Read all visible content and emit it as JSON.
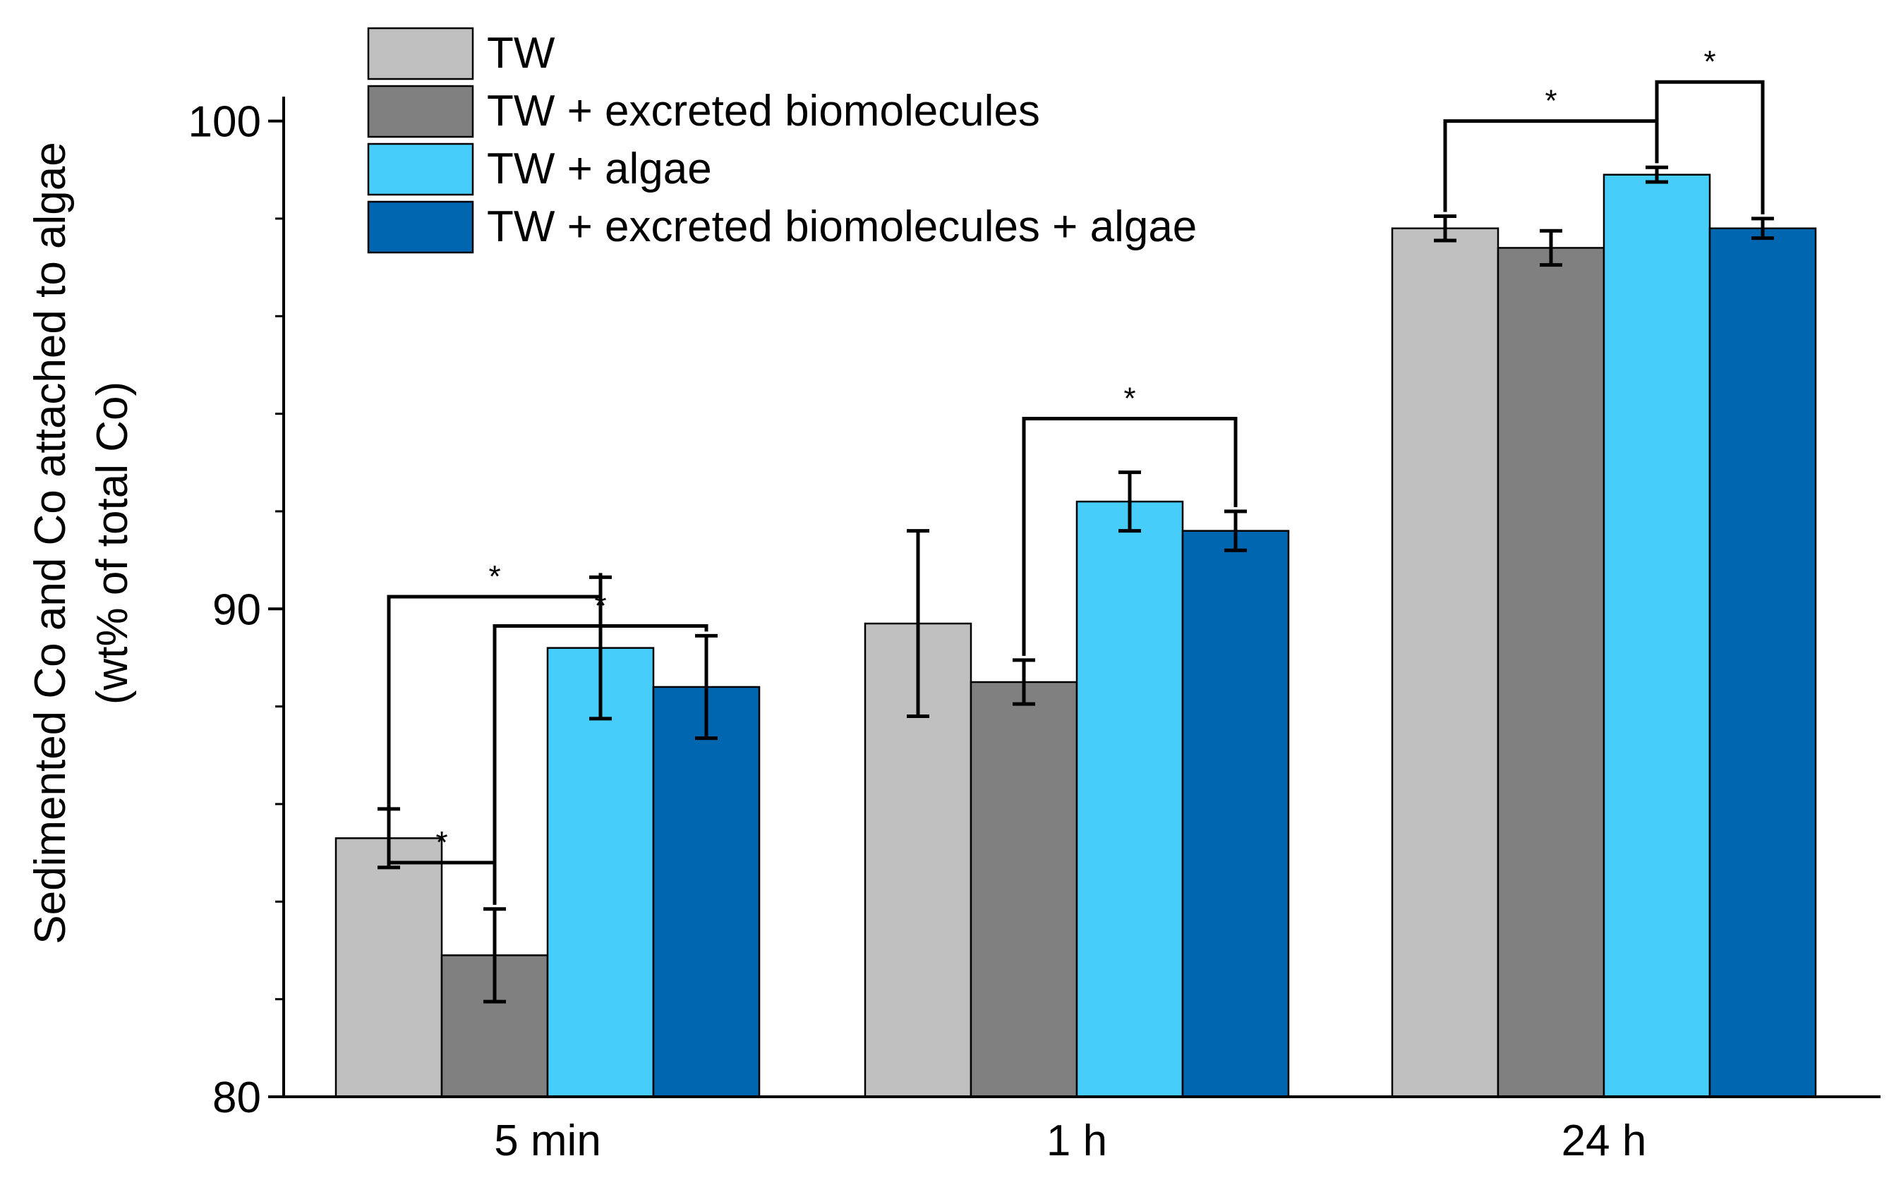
{
  "chart_data": {
    "type": "bar",
    "title": "",
    "xlabel": "",
    "ylabel": "Sedimented Co and Co attached to algae",
    "ylabel_sub": "(wt% of total Co)",
    "ylim": [
      80,
      100.5
    ],
    "yticks": [
      80,
      90,
      100
    ],
    "yticks_minor": [
      82,
      84,
      86,
      88,
      92,
      94,
      96,
      98
    ],
    "categories": [
      "5 min",
      "1 h",
      "24 h"
    ],
    "series": [
      {
        "name": "TW",
        "color": "#c0c0c0",
        "values": [
          85.3,
          89.7,
          97.8
        ],
        "errors": [
          0.6,
          1.9,
          0.25
        ]
      },
      {
        "name": "TW + excreted biomolecules",
        "color": "#808080",
        "values": [
          82.9,
          88.5,
          97.4
        ],
        "errors": [
          0.95,
          0.45,
          0.35
        ]
      },
      {
        "name": "TW + algae",
        "color": "#47cdf9",
        "values": [
          89.2,
          92.2,
          98.9
        ],
        "errors": [
          1.45,
          0.6,
          0.15
        ]
      },
      {
        "name": "TW + excreted biomolecules + algae",
        "color": "#0066b0",
        "values": [
          88.4,
          91.6,
          97.8
        ],
        "errors": [
          1.05,
          0.4,
          0.2
        ]
      }
    ],
    "significance": [
      {
        "group": 0,
        "from": 0,
        "to": 2,
        "label": "*",
        "y": 90.25
      },
      {
        "group": 0,
        "from": 1,
        "to": 3,
        "label": "*",
        "y": 89.65
      },
      {
        "group": 0,
        "from": 0,
        "to": 1,
        "label": "*",
        "y": 84.8
      },
      {
        "group": 1,
        "from": 1,
        "to": 3,
        "label": "*",
        "y": 93.9
      },
      {
        "group": 2,
        "from": 0,
        "to": 2,
        "label": "*",
        "y": 100.0
      },
      {
        "group": 2,
        "from": 2,
        "to": 3,
        "label": "*",
        "y": 100.8
      }
    ],
    "legend_position": "top-left"
  }
}
